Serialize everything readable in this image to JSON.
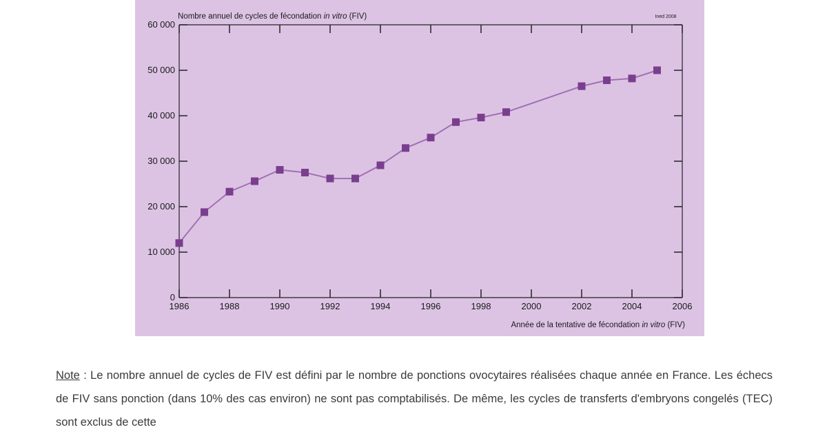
{
  "colors": {
    "panel_background": "#dcc3e4",
    "series_line": "#a070b0",
    "series_marker": "#7a3e8e",
    "axis": "#222222"
  },
  "chart_data": {
    "type": "line",
    "title_prefix": "Nombre annuel de cycles de fécondation ",
    "title_italic": "in vitro",
    "title_suffix": " (FIV)",
    "source": "Ined 2008",
    "xlabel_prefix": "Année de la tentative de fécondation ",
    "xlabel_italic": "in vitro",
    "xlabel_suffix": " (FIV)",
    "ylabel": "",
    "xlim": [
      1986,
      2006
    ],
    "ylim": [
      0,
      60000
    ],
    "x_ticks": [
      1986,
      1988,
      1990,
      1992,
      1994,
      1996,
      1998,
      2000,
      2002,
      2004,
      2006
    ],
    "x_tick_labels": [
      "1986",
      "1988",
      "1990",
      "1992",
      "1994",
      "1996",
      "1998",
      "2000",
      "2002",
      "2004",
      "2006"
    ],
    "y_ticks": [
      0,
      10000,
      20000,
      30000,
      40000,
      50000,
      60000
    ],
    "y_tick_labels": [
      "0",
      "10 000",
      "20 000",
      "30 000",
      "40 000",
      "50 000",
      "60 000"
    ],
    "grid": false,
    "series": [
      {
        "x": [
          1986,
          1987,
          1988,
          1989,
          1990,
          1991,
          1992,
          1993,
          1994,
          1995,
          1996,
          1997,
          1998,
          1999,
          2002,
          2003,
          2004,
          2005
        ],
        "values": [
          12000,
          18800,
          23300,
          25600,
          28100,
          27500,
          26200,
          26200,
          29100,
          32900,
          35200,
          38600,
          39600,
          40800,
          46500,
          47800,
          48200,
          50000
        ]
      }
    ]
  },
  "note": {
    "label": "Note",
    "text": " : Le nombre annuel de cycles de FIV est défini par le nombre de ponctions ovocytaires réalisées chaque année en France. Les échecs de FIV sans ponction (dans 10% des cas environ) ne sont pas comptabilisés. De même, les cycles de transferts d'embryons congelés (TEC) sont exclus de cette"
  }
}
